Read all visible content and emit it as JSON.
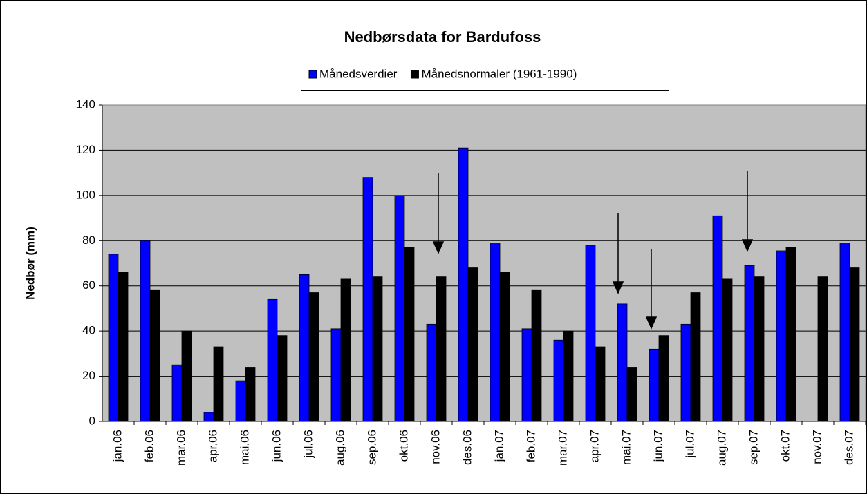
{
  "chart_data": {
    "type": "bar",
    "title": "Nedbørsdata for Bardufoss",
    "y_label": "Nedbør (mm)",
    "categories": [
      "jan.06",
      "feb.06",
      "mar.06",
      "apr.06",
      "mai.06",
      "jun.06",
      "jul.06",
      "aug.06",
      "sep.06",
      "okt.06",
      "nov.06",
      "des.06",
      "jan.07",
      "feb.07",
      "mar.07",
      "apr.07",
      "mai.07",
      "jun.07",
      "jul.07",
      "aug.07",
      "sep.07",
      "okt.07",
      "nov.07",
      "des.07"
    ],
    "series": [
      {
        "name": "Månedsverdier",
        "color": "#0000ff",
        "values": [
          74,
          80,
          25,
          4,
          18,
          54,
          65,
          41,
          108,
          100,
          43,
          121,
          79,
          41,
          36,
          78,
          52,
          32,
          43,
          91,
          69,
          75.5,
          null,
          79
        ]
      },
      {
        "name": "Månedsnormaler (1961-1990)",
        "color": "#000000",
        "values": [
          66,
          58,
          40,
          33,
          24,
          38,
          57,
          63,
          64,
          77,
          64,
          68,
          66,
          58,
          40,
          33,
          24,
          38,
          57,
          63,
          64,
          77,
          64,
          68
        ]
      }
    ],
    "ylim": [
      0,
      140
    ],
    "yticks": [
      0,
      20,
      40,
      60,
      80,
      100,
      120,
      140
    ],
    "grid": true
  }
}
